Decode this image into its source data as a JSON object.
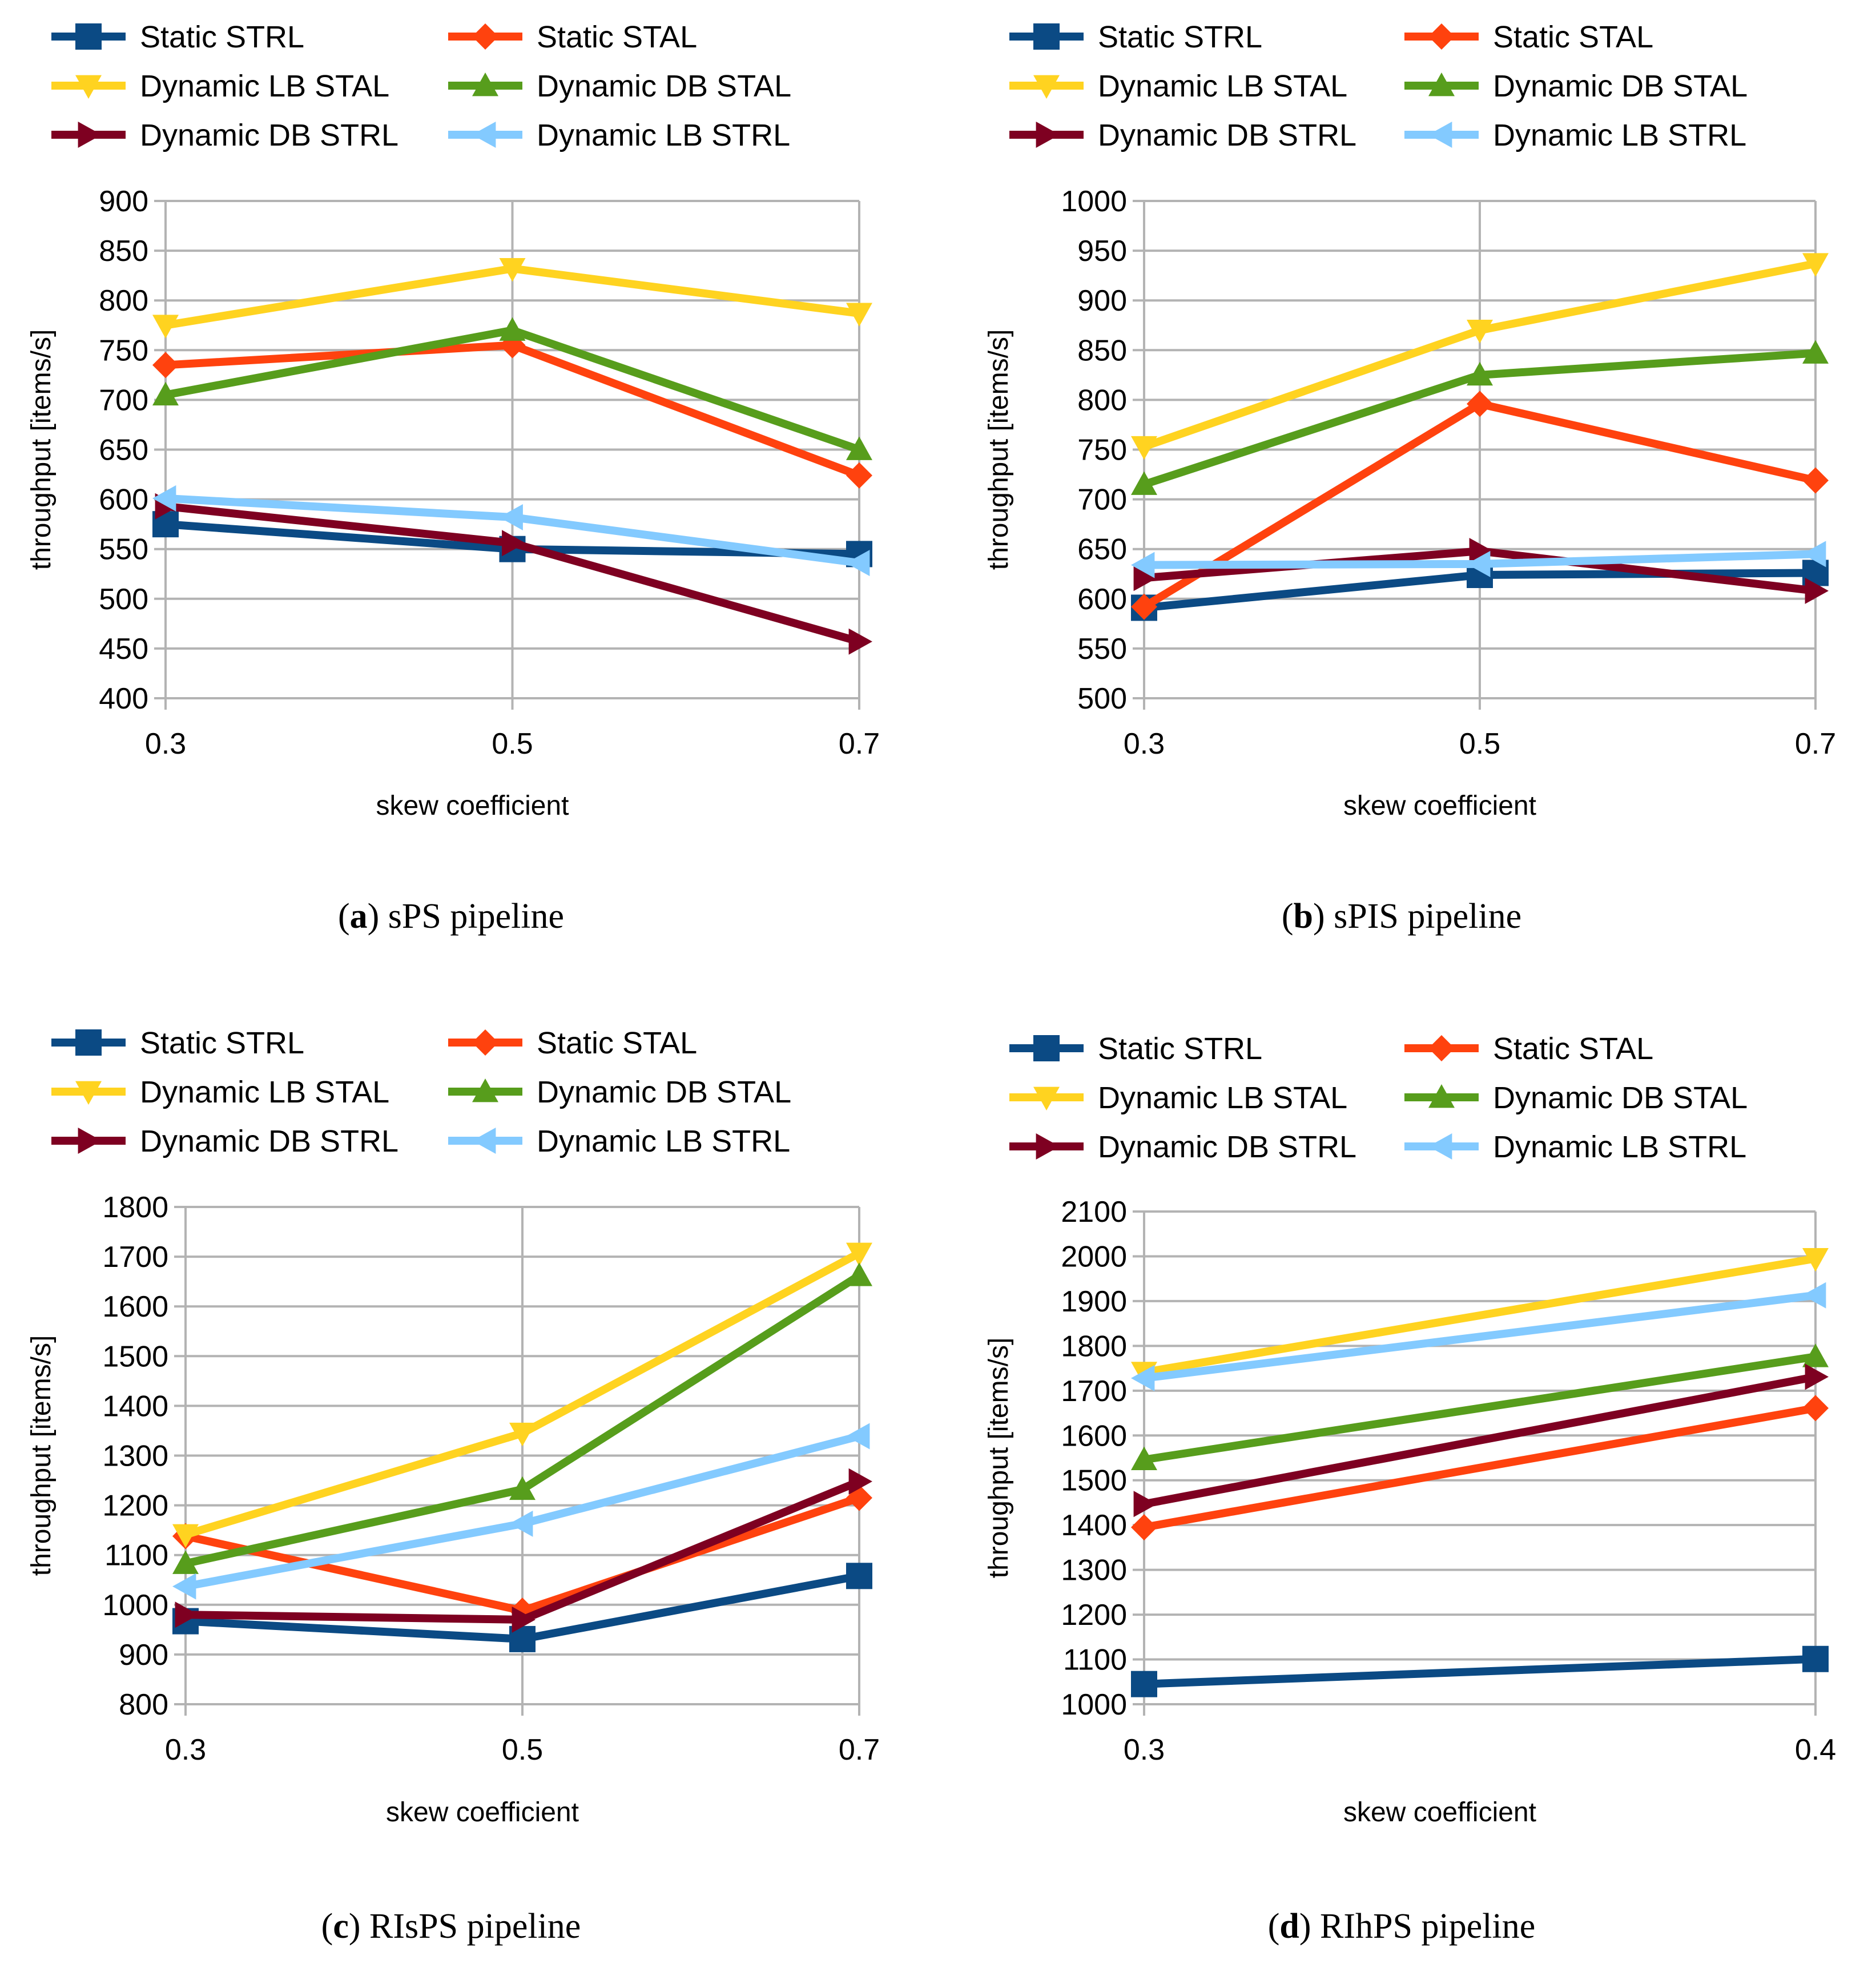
{
  "figure": {
    "panels": [
      {
        "caption_letter": "a",
        "caption_text": "sPS pipeline"
      },
      {
        "caption_letter": "b",
        "caption_text": "sPIS pipeline"
      },
      {
        "caption_letter": "c",
        "caption_text": "RIsPS pipeline"
      },
      {
        "caption_letter": "d",
        "caption_text": "RIhPS pipeline"
      }
    ]
  },
  "series_styles": [
    {
      "name": "Static STRL",
      "color": "#0b4a84",
      "marker": "square"
    },
    {
      "name": "Static STAL",
      "color": "#ff420e",
      "marker": "diamond"
    },
    {
      "name": "Dynamic LB STAL",
      "color": "#ffd320",
      "marker": "triangle-down"
    },
    {
      "name": "Dynamic DB STAL",
      "color": "#579d1c",
      "marker": "triangle-up"
    },
    {
      "name": "Dynamic DB STRL",
      "color": "#7e0021",
      "marker": "triangle-right"
    },
    {
      "name": "Dynamic LB STRL",
      "color": "#83caff",
      "marker": "triangle-left"
    }
  ],
  "chart_data": [
    {
      "type": "line",
      "title": "sPS pipeline",
      "xlabel": "skew coefficient",
      "ylabel": "throughput [items/s]",
      "x": [
        "0.3",
        "0.5",
        "0.7"
      ],
      "ylim": [
        400,
        900
      ],
      "yticks": [
        400,
        450,
        500,
        550,
        600,
        650,
        700,
        750,
        800,
        850,
        900
      ],
      "grid": true,
      "legend_position": "top",
      "series": [
        {
          "name": "Static STRL",
          "values": [
            575,
            550,
            545
          ]
        },
        {
          "name": "Static STAL",
          "values": [
            735,
            755,
            624
          ]
        },
        {
          "name": "Dynamic LB STAL",
          "values": [
            775,
            832,
            787
          ]
        },
        {
          "name": "Dynamic DB STAL",
          "values": [
            705,
            770,
            650
          ]
        },
        {
          "name": "Dynamic DB STRL",
          "values": [
            593,
            556,
            457
          ]
        },
        {
          "name": "Dynamic LB STRL",
          "values": [
            601,
            582,
            536
          ]
        }
      ]
    },
    {
      "type": "line",
      "title": "sPIS pipeline",
      "xlabel": "skew coefficient",
      "ylabel": "throughput [items/s]",
      "x": [
        "0.3",
        "0.5",
        "0.7"
      ],
      "ylim": [
        500,
        1000
      ],
      "yticks": [
        500,
        550,
        600,
        650,
        700,
        750,
        800,
        850,
        900,
        950,
        1000
      ],
      "grid": true,
      "legend_position": "top",
      "series": [
        {
          "name": "Static STRL",
          "values": [
            591,
            624,
            626
          ]
        },
        {
          "name": "Static STAL",
          "values": [
            592,
            796,
            719
          ]
        },
        {
          "name": "Dynamic LB STAL",
          "values": [
            753,
            870,
            937
          ]
        },
        {
          "name": "Dynamic DB STAL",
          "values": [
            715,
            825,
            847
          ]
        },
        {
          "name": "Dynamic DB STRL",
          "values": [
            621,
            648,
            608
          ]
        },
        {
          "name": "Dynamic LB STRL",
          "values": [
            634,
            635,
            645
          ]
        }
      ]
    },
    {
      "type": "line",
      "title": "RIsPS pipeline",
      "xlabel": "skew coefficient",
      "ylabel": "throughput [items/s]",
      "x": [
        "0.3",
        "0.5",
        "0.7"
      ],
      "ylim": [
        800,
        1800
      ],
      "yticks": [
        800,
        900,
        1000,
        1100,
        1200,
        1300,
        1400,
        1500,
        1600,
        1700,
        1800
      ],
      "grid": true,
      "legend_position": "top",
      "series": [
        {
          "name": "Static STRL",
          "values": [
            967,
            931,
            1058
          ]
        },
        {
          "name": "Static STAL",
          "values": [
            1138,
            988,
            1215
          ]
        },
        {
          "name": "Dynamic LB STAL",
          "values": [
            1141,
            1345,
            1707
          ]
        },
        {
          "name": "Dynamic DB STAL",
          "values": [
            1083,
            1232,
            1662
          ]
        },
        {
          "name": "Dynamic DB STRL",
          "values": [
            980,
            970,
            1248
          ]
        },
        {
          "name": "Dynamic LB STRL",
          "values": [
            1037,
            1163,
            1339
          ]
        }
      ]
    },
    {
      "type": "line",
      "title": "RIhPS pipeline",
      "xlabel": "skew coefficient",
      "ylabel": "throughput [items/s]",
      "x": [
        "0.3",
        "0.4"
      ],
      "ylim": [
        1000,
        2100
      ],
      "yticks": [
        1000,
        1100,
        1200,
        1300,
        1400,
        1500,
        1600,
        1700,
        1800,
        1900,
        2000,
        2100
      ],
      "grid": true,
      "legend_position": "top",
      "series": [
        {
          "name": "Static STRL",
          "values": [
            1045,
            1101
          ]
        },
        {
          "name": "Static STAL",
          "values": [
            1395,
            1661
          ]
        },
        {
          "name": "Dynamic LB STAL",
          "values": [
            1741,
            1995
          ]
        },
        {
          "name": "Dynamic DB STAL",
          "values": [
            1546,
            1776
          ]
        },
        {
          "name": "Dynamic DB STRL",
          "values": [
            1447,
            1731
          ]
        },
        {
          "name": "Dynamic LB STRL",
          "values": [
            1728,
            1913
          ]
        }
      ]
    }
  ]
}
